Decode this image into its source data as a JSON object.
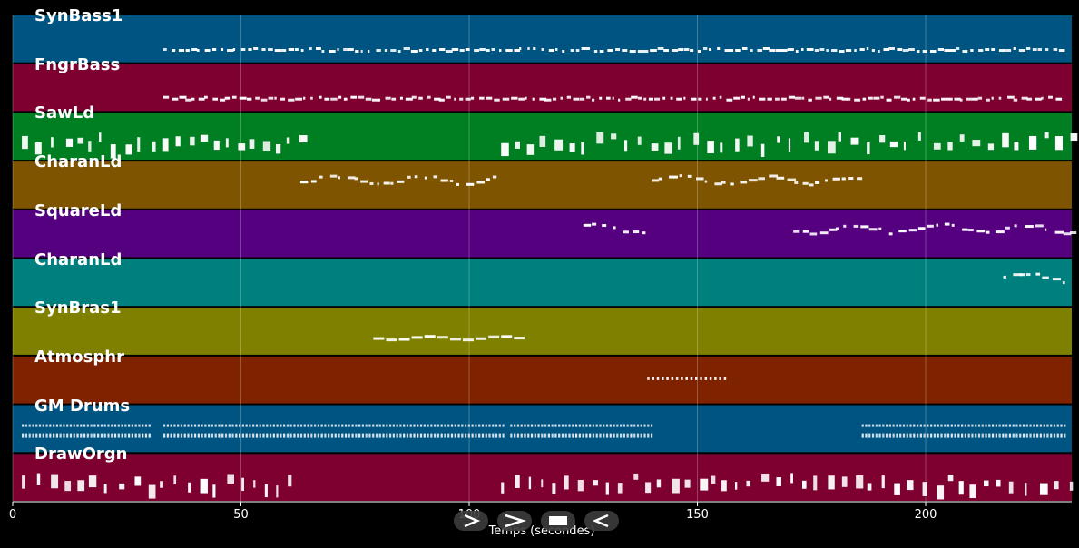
{
  "window": {
    "background": "#000000"
  },
  "timeline": {
    "xlabel": "Temps (secondes)",
    "xlim": [
      0,
      232
    ],
    "ticks": [
      0,
      50,
      100,
      150,
      200
    ],
    "tick_labels": [
      "0",
      "50",
      "100",
      "150",
      "200"
    ],
    "grid": true
  },
  "tracks": [
    {
      "name": "SynBass1",
      "color": "#005481",
      "segments": [
        [
          33,
          230
        ]
      ],
      "style": "sparse-top"
    },
    {
      "name": "FngrBass",
      "color": "#7d0030",
      "segments": [
        [
          33,
          230
        ]
      ],
      "style": "sparse-top"
    },
    {
      "name": "SawLd",
      "color": "#007f22",
      "segments": [
        [
          2,
          63
        ],
        [
          107,
          232
        ]
      ],
      "style": "dense"
    },
    {
      "name": "CharanLd",
      "color": "#7f5400",
      "segments": [
        [
          63,
          107
        ],
        [
          140,
          186
        ]
      ],
      "style": "melody"
    },
    {
      "name": "SquareLd",
      "color": "#54007f",
      "segments": [
        [
          125,
          139
        ],
        [
          171,
          232
        ]
      ],
      "style": "melody"
    },
    {
      "name": "CharanLd",
      "color": "#007f7f",
      "segments": [
        [
          217,
          232
        ]
      ],
      "style": "melody"
    },
    {
      "name": "SynBras1",
      "color": "#7f7f00",
      "segments": [
        [
          79,
          110
        ]
      ],
      "style": "long"
    },
    {
      "name": "Atmosphr",
      "color": "#7f2200",
      "segments": [
        [
          139,
          156
        ]
      ],
      "style": "sparse-mid"
    },
    {
      "name": "GM Drums",
      "color": "#005481",
      "segments": [
        [
          2,
          30
        ],
        [
          33,
          108
        ],
        [
          109,
          140
        ],
        [
          186,
          231
        ]
      ],
      "style": "drums"
    },
    {
      "name": "DrawOrgn",
      "color": "#7d0030",
      "segments": [
        [
          2,
          63
        ],
        [
          107,
          232
        ]
      ],
      "style": "dense"
    }
  ],
  "controls": [
    {
      "name": "play-icon"
    },
    {
      "name": "fast-forward-icon"
    },
    {
      "name": "stop-icon"
    },
    {
      "name": "rewind-icon"
    }
  ]
}
